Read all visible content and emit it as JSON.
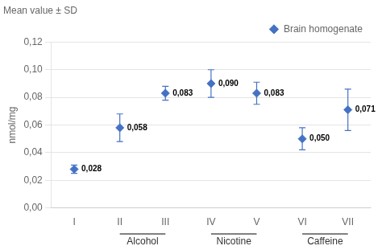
{
  "chart_data": {
    "type": "errorbar",
    "subtitle": "Mean value ± SD",
    "ylabel": "nmol/mg",
    "categories": [
      "I",
      "II",
      "III",
      "IV",
      "V",
      "VI",
      "VII"
    ],
    "series": [
      {
        "name": "Brain homogenate",
        "color": "#4472C4",
        "marker": "diamond",
        "values": [
          0.028,
          0.058,
          0.083,
          0.09,
          0.083,
          0.05,
          0.071
        ],
        "errors": [
          0.003,
          0.01,
          0.005,
          0.01,
          0.008,
          0.008,
          0.015
        ],
        "value_labels": [
          "0,028",
          "0,058",
          "0,083",
          "0,090",
          "0,083",
          "0,050",
          "0,071"
        ]
      }
    ],
    "ylim": [
      0.0,
      0.12
    ],
    "yticks": [
      {
        "value": 0.0,
        "label": "0,00"
      },
      {
        "value": 0.02,
        "label": "0,02"
      },
      {
        "value": 0.04,
        "label": "0,04"
      },
      {
        "value": 0.06,
        "label": "0,06"
      },
      {
        "value": 0.08,
        "label": "0,08"
      },
      {
        "value": 0.1,
        "label": "0,10"
      },
      {
        "value": 0.12,
        "label": "0,12"
      }
    ],
    "annotations": [
      {
        "text": "Alcohol",
        "from": "II",
        "to": "III"
      },
      {
        "text": "Nicotine",
        "from": "IV",
        "to": "V"
      },
      {
        "text": "Caffeine",
        "from": "VI",
        "to": "VII"
      }
    ],
    "grid": "y",
    "legend": "upper right",
    "data_labels": true
  }
}
